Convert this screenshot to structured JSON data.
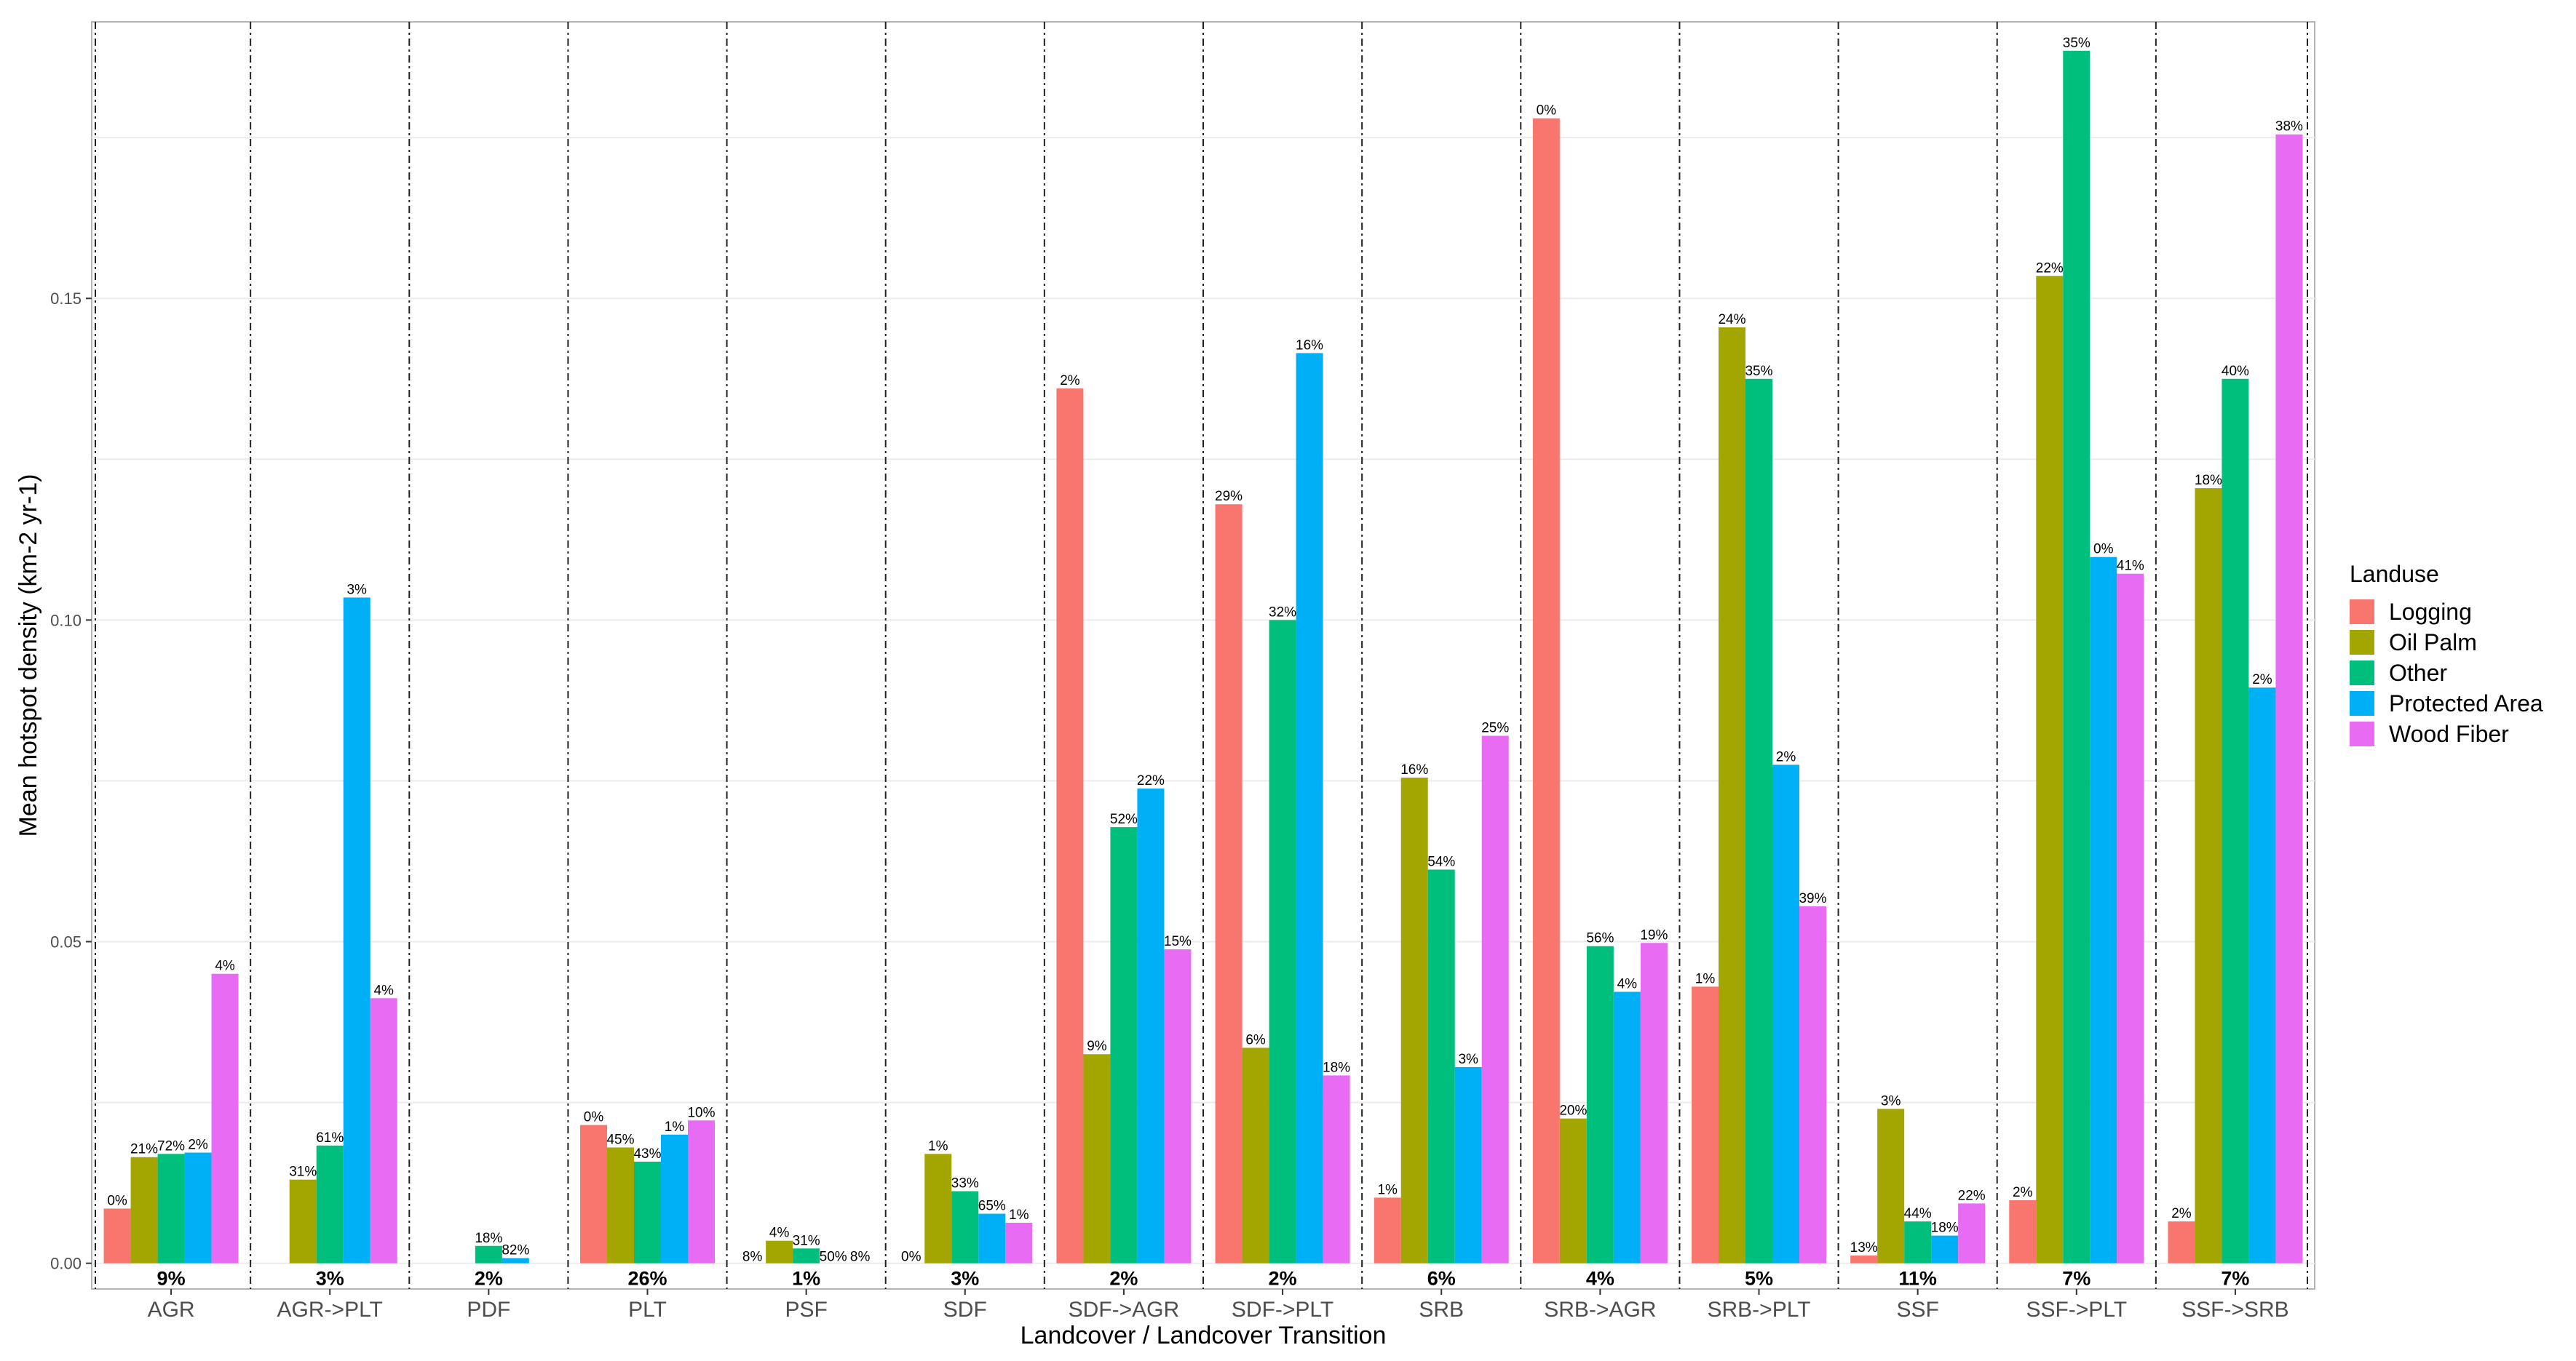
{
  "chart_data": {
    "type": "bar",
    "title": "",
    "xlabel": "Landcover / Landcover Transition",
    "ylabel": "Mean hotspot density (km-2 yr-1)",
    "ylim": [
      -0.004,
      0.193
    ],
    "yticks": [
      0.0,
      0.05,
      0.1,
      0.15
    ],
    "ytick_labels": [
      "0.00",
      "0.05",
      "0.10",
      "0.15"
    ],
    "grid": true,
    "legend_title": "Landuse",
    "legend_position": "right",
    "categories": [
      "AGR",
      "AGR->PLT",
      "PDF",
      "PLT",
      "PSF",
      "SDF",
      "SDF->AGR",
      "SDF->PLT",
      "SRB",
      "SRB->AGR",
      "SRB->PLT",
      "SSF",
      "SSF->PLT",
      "SSF->SRB"
    ],
    "category_totals": [
      "9%",
      "3%",
      "2%",
      "26%",
      "1%",
      "3%",
      "2%",
      "2%",
      "6%",
      "4%",
      "5%",
      "11%",
      "7%",
      "7%"
    ],
    "series": [
      {
        "name": "Logging",
        "color": "#F8766D",
        "values": [
          0.0085,
          null,
          null,
          0.0215,
          0.0,
          0.0,
          0.136,
          0.118,
          0.0102,
          0.178,
          0.043,
          0.0012,
          0.0098,
          0.0065
        ],
        "labels": [
          "0%",
          null,
          null,
          "0%",
          "8%",
          "0%",
          "2%",
          "29%",
          "1%",
          "0%",
          "1%",
          "13%",
          "2%",
          "2%"
        ]
      },
      {
        "name": "Oil Palm",
        "color": "#A3A500",
        "values": [
          0.0165,
          0.013,
          null,
          0.018,
          0.0035,
          0.017,
          0.0325,
          0.0335,
          0.0755,
          0.0225,
          0.1455,
          0.024,
          0.1535,
          0.1205
        ],
        "labels": [
          "21%",
          "31%",
          null,
          "45%",
          "4%",
          "1%",
          "9%",
          "6%",
          "16%",
          "20%",
          "24%",
          "3%",
          "22%",
          "18%"
        ]
      },
      {
        "name": "Other",
        "color": "#00BF7D",
        "values": [
          0.017,
          0.0183,
          0.0027,
          0.0158,
          0.0023,
          0.0112,
          0.0678,
          0.1,
          0.0612,
          0.0493,
          0.1375,
          0.0065,
          0.1885,
          0.1375
        ],
        "labels": [
          "72%",
          "61%",
          "18%",
          "43%",
          "31%",
          "33%",
          "52%",
          "32%",
          "54%",
          "56%",
          "35%",
          "44%",
          "35%",
          "40%"
        ]
      },
      {
        "name": "Protected Area",
        "color": "#00B0F6",
        "values": [
          0.0172,
          0.1035,
          0.0008,
          0.02,
          0.0,
          0.0077,
          0.0738,
          0.1415,
          0.0305,
          0.0422,
          0.0775,
          0.0043,
          0.1098,
          0.0895
        ],
        "labels": [
          "2%",
          "3%",
          "82%",
          "1%",
          "50%",
          "65%",
          "22%",
          "16%",
          "3%",
          "4%",
          "2%",
          "18%",
          "0%",
          "2%"
        ]
      },
      {
        "name": "Wood Fiber",
        "color": "#E76BF3",
        "values": [
          0.045,
          0.0412,
          null,
          0.0222,
          0.0,
          0.0063,
          0.0488,
          0.0292,
          0.082,
          0.0498,
          0.0555,
          0.0093,
          0.1072,
          0.1755
        ],
        "labels": [
          "4%",
          "4%",
          null,
          "10%",
          "8%",
          "1%",
          "15%",
          "18%",
          "25%",
          "19%",
          "39%",
          "22%",
          "41%",
          "38%"
        ]
      }
    ]
  }
}
